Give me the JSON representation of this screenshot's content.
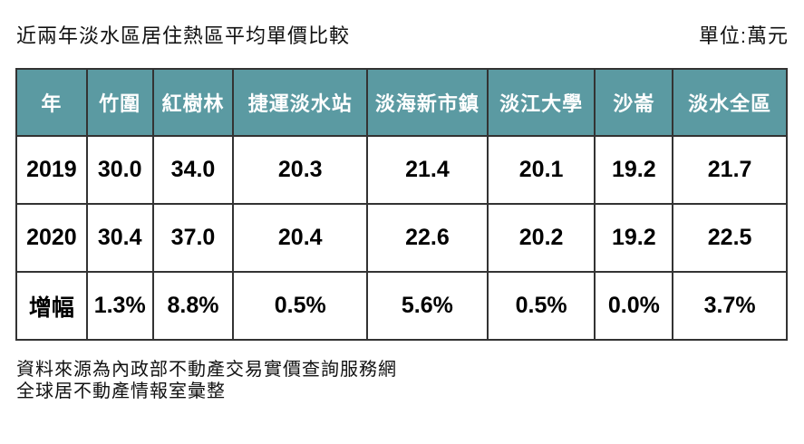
{
  "page": {
    "title": "近兩年淡水區居住熱區平均單價比較",
    "unit_label": "單位:萬元"
  },
  "chart_data": {
    "type": "table",
    "title": "近兩年淡水區居住熱區平均單價比較",
    "unit": "萬元",
    "columns": [
      "年",
      "竹圍",
      "紅樹林",
      "捷運淡水站",
      "淡海新市鎮",
      "淡江大學",
      "沙崙",
      "淡水全區"
    ],
    "rows": [
      [
        "2019",
        "30.0",
        "34.0",
        "20.3",
        "21.4",
        "20.1",
        "19.2",
        "21.7"
      ],
      [
        "2020",
        "30.4",
        "37.0",
        "20.4",
        "22.6",
        "20.2",
        "19.2",
        "22.5"
      ],
      [
        "增幅",
        "1.3%",
        "8.8%",
        "0.5%",
        "5.6%",
        "0.5%",
        "0.0%",
        "3.7%"
      ]
    ]
  },
  "footer": {
    "line1": "資料來源為內政部不動產交易實價查詢服務網",
    "line2": "全球居不動產情報室彙整"
  },
  "colors": {
    "header_bg": "#5b9aa2",
    "header_text": "#ffffff",
    "border": "#333333",
    "body_text": "#000000"
  }
}
